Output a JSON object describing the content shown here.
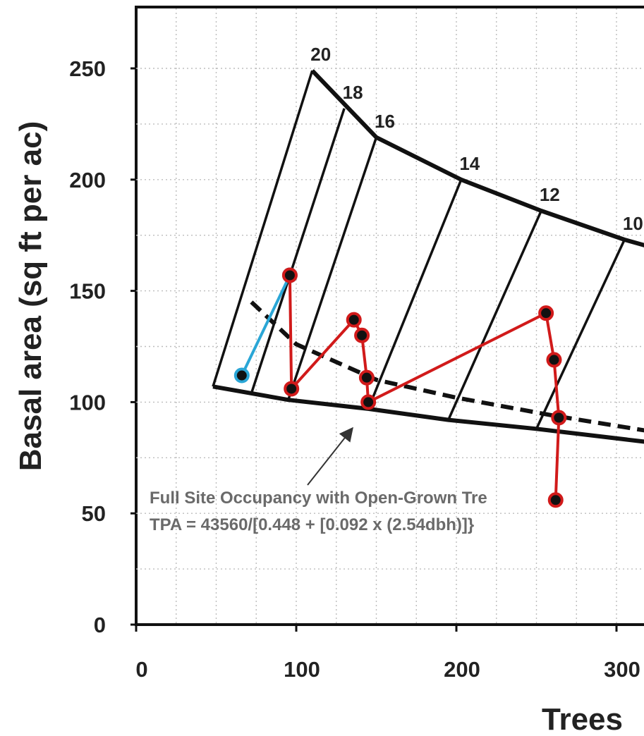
{
  "chart_data": {
    "type": "line",
    "title": "",
    "xlabel": "Trees",
    "ylabel": "Basal area (sq ft per ac)",
    "xlim": [
      0,
      300
    ],
    "ylim": [
      0,
      250
    ],
    "x_ticks": [
      "0",
      "100",
      "200",
      "300"
    ],
    "y_ticks": [
      "0",
      "50",
      "100",
      "150",
      "200",
      "250"
    ],
    "grid": true,
    "dbh_lines": [
      {
        "label": "20",
        "upper": [
          110,
          249
        ],
        "lower": [
          48,
          107
        ]
      },
      {
        "label": "18",
        "upper": [
          130,
          232
        ],
        "lower": [
          72,
          104
        ]
      },
      {
        "label": "16",
        "upper": [
          150,
          219
        ],
        "lower": [
          95,
          101
        ]
      },
      {
        "label": "14",
        "upper": [
          203,
          200
        ],
        "lower": [
          145,
          97
        ]
      },
      {
        "label": "12",
        "upper": [
          253,
          186
        ],
        "lower": [
          195,
          92
        ]
      },
      {
        "label": "10",
        "upper": [
          305,
          173
        ],
        "lower": [
          250,
          88
        ]
      }
    ],
    "upper_curve": [
      [
        110,
        249
      ],
      [
        150,
        219
      ],
      [
        203,
        200
      ],
      [
        253,
        186
      ],
      [
        305,
        173
      ],
      [
        320,
        170
      ]
    ],
    "lower_curve": [
      [
        48,
        107
      ],
      [
        95,
        101
      ],
      [
        145,
        97
      ],
      [
        195,
        92
      ],
      [
        250,
        88
      ],
      [
        320,
        82
      ]
    ],
    "dashed_line": [
      [
        72,
        145
      ],
      [
        100,
        126
      ],
      [
        150,
        110
      ],
      [
        200,
        102
      ],
      [
        260,
        94
      ],
      [
        320,
        87
      ]
    ],
    "series": [
      {
        "color": "#d11a1a",
        "points": [
          [
            96,
            157
          ],
          [
            97,
            106
          ],
          [
            136,
            137
          ],
          [
            141,
            130
          ],
          [
            144,
            111
          ],
          [
            145,
            100
          ],
          [
            256,
            140
          ],
          [
            261,
            119
          ],
          [
            264,
            93
          ],
          [
            262,
            56
          ]
        ]
      },
      {
        "color": "#2aa6d6",
        "points": [
          [
            66,
            112
          ],
          [
            96,
            157
          ]
        ]
      }
    ],
    "annotations": {
      "line1": "Full Site Occupancy with Open-Grown Tre",
      "line2": "TPA = 43560/[0.448 + [0.092 x (2.54dbh)]}"
    }
  }
}
